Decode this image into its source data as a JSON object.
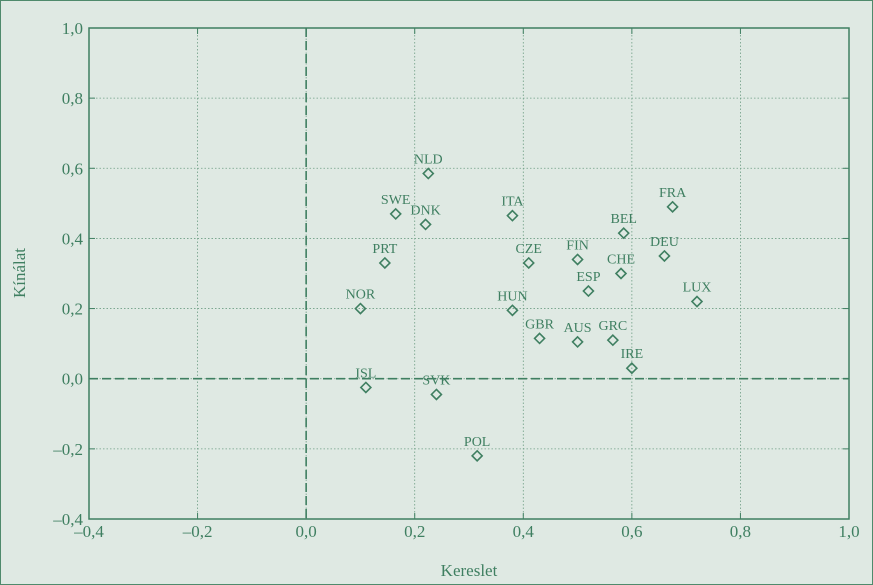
{
  "chart_data": {
    "type": "scatter",
    "xlabel": "Kereslet",
    "ylabel": "Kínálat",
    "xlim": [
      -0.4,
      1.0
    ],
    "ylim": [
      -0.4,
      1.0
    ],
    "x_ticks": [
      "–0,4",
      "–0,2",
      "0,0",
      "0,2",
      "0,4",
      "0,6",
      "0,8",
      "1,0"
    ],
    "y_ticks": [
      "1,0",
      "0,8",
      "0,6",
      "0,4",
      "0,2",
      "0,0",
      "–0,2",
      "–0,4"
    ],
    "grid": true,
    "reference_lines": {
      "x": 0.0,
      "y": 0.0
    },
    "points": [
      {
        "label": "NLD",
        "x": 0.225,
        "y": 0.585
      },
      {
        "label": "SWE",
        "x": 0.165,
        "y": 0.47
      },
      {
        "label": "DNK",
        "x": 0.22,
        "y": 0.44
      },
      {
        "label": "ITA",
        "x": 0.38,
        "y": 0.465
      },
      {
        "label": "FRA",
        "x": 0.675,
        "y": 0.49
      },
      {
        "label": "BEL",
        "x": 0.585,
        "y": 0.415
      },
      {
        "label": "DEU",
        "x": 0.66,
        "y": 0.35
      },
      {
        "label": "PRT",
        "x": 0.145,
        "y": 0.33
      },
      {
        "label": "CZE",
        "x": 0.41,
        "y": 0.33
      },
      {
        "label": "FIN",
        "x": 0.5,
        "y": 0.34
      },
      {
        "label": "CHE",
        "x": 0.58,
        "y": 0.3
      },
      {
        "label": "ESP",
        "x": 0.52,
        "y": 0.25
      },
      {
        "label": "LUX",
        "x": 0.72,
        "y": 0.22
      },
      {
        "label": "NOR",
        "x": 0.1,
        "y": 0.2
      },
      {
        "label": "HUN",
        "x": 0.38,
        "y": 0.195
      },
      {
        "label": "GBR",
        "x": 0.43,
        "y": 0.115
      },
      {
        "label": "AUS",
        "x": 0.5,
        "y": 0.105
      },
      {
        "label": "GRC",
        "x": 0.565,
        "y": 0.11
      },
      {
        "label": "IRE",
        "x": 0.6,
        "y": 0.03
      },
      {
        "label": "ISL",
        "x": 0.11,
        "y": -0.025
      },
      {
        "label": "SVK",
        "x": 0.24,
        "y": -0.045
      },
      {
        "label": "POL",
        "x": 0.315,
        "y": -0.22
      }
    ]
  },
  "colors": {
    "background": "#dfe9e3",
    "axis": "#3f7f61",
    "grid": "#6f9e85",
    "marker": "#3f7f61"
  }
}
